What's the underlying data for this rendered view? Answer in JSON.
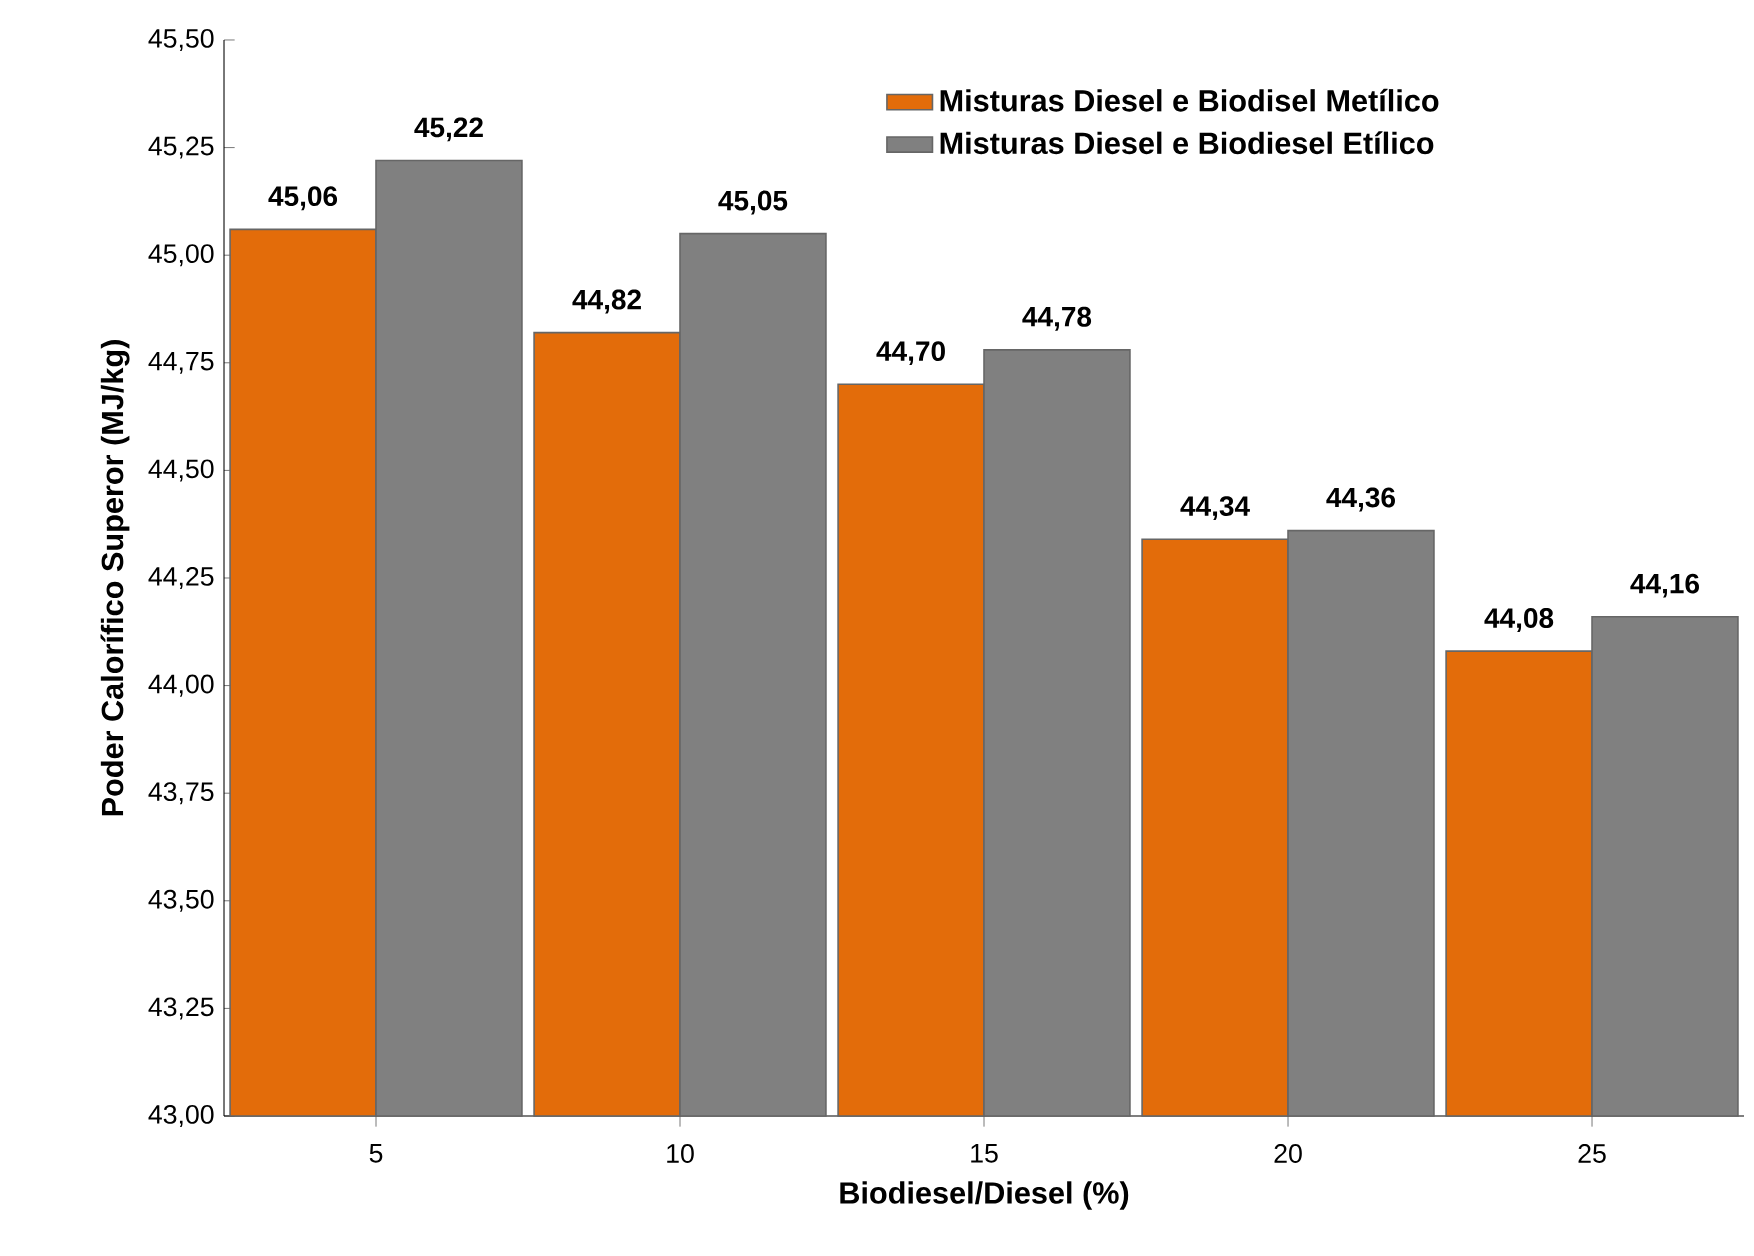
{
  "chart_data": {
    "type": "bar",
    "xlabel": "Biodiesel/Diesel (%)",
    "ylabel": "Poder Calorífico Superor (MJ/kg)",
    "categories": [
      "5",
      "10",
      "15",
      "20",
      "25"
    ],
    "series": [
      {
        "name": "Misturas Diesel e Biodisel Metílico",
        "color": "#e36c0a",
        "values": [
          45.06,
          44.82,
          44.7,
          44.34,
          44.08
        ],
        "value_labels": [
          "45,06",
          "44,82",
          "44,70",
          "44,34",
          "44,08"
        ]
      },
      {
        "name": "Misturas Diesel e Biodiesel Etílico",
        "color": "#808080",
        "values": [
          45.22,
          45.05,
          44.78,
          44.36,
          44.16
        ],
        "value_labels": [
          "45,22",
          "45,05",
          "44,78",
          "44,36",
          "44,16"
        ]
      }
    ],
    "ylim": [
      43,
      45.5
    ],
    "yticks": [
      {
        "value": 43,
        "label": "43,00"
      },
      {
        "value": 43.25,
        "label": "43,25"
      },
      {
        "value": 43.5,
        "label": "43,50"
      },
      {
        "value": 43.75,
        "label": "43,75"
      },
      {
        "value": 44,
        "label": "44,00"
      },
      {
        "value": 44.25,
        "label": "44,25"
      },
      {
        "value": 44.5,
        "label": "44,50"
      },
      {
        "value": 44.75,
        "label": "44,75"
      },
      {
        "value": 45,
        "label": "45,00"
      },
      {
        "value": 45.25,
        "label": "45,25"
      },
      {
        "value": 45.5,
        "label": "45,50"
      }
    ],
    "legend": "top right"
  }
}
